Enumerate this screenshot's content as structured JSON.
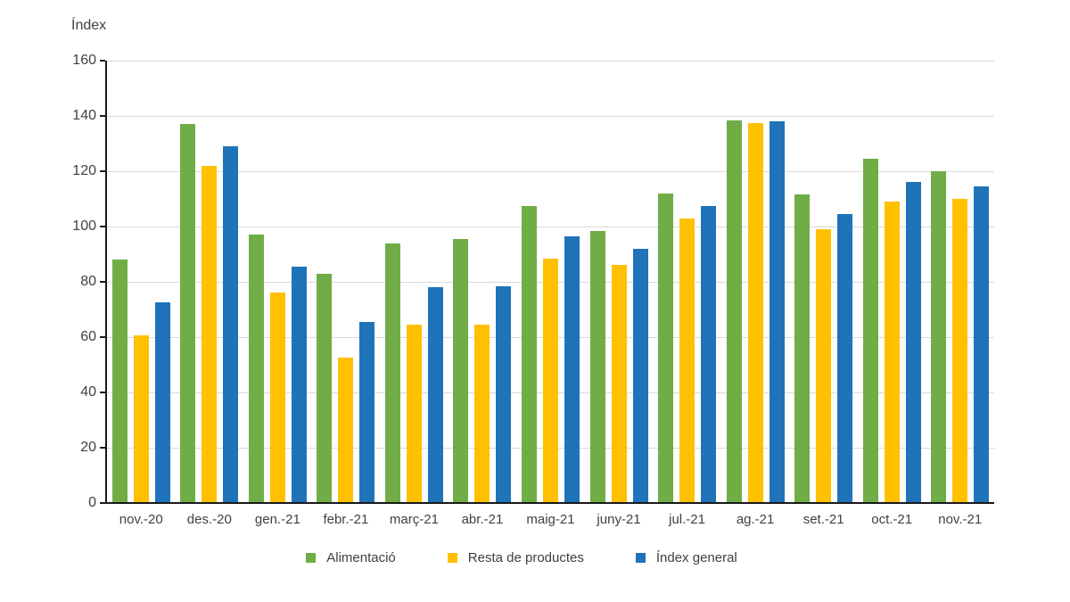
{
  "chart_data": {
    "type": "bar",
    "axis_label": "Índex",
    "categories": [
      "nov.-20",
      "des.-20",
      "gen.-21",
      "febr.-21",
      "març-21",
      "abr.-21",
      "maig-21",
      "juny-21",
      "jul.-21",
      "ag.-21",
      "set.-21",
      "oct.-21",
      "nov.-21"
    ],
    "series": [
      {
        "name": "Alimentació",
        "color": "#70AD47",
        "values": [
          88,
          137,
          97,
          83,
          94,
          95.5,
          107.5,
          98.5,
          112,
          138.5,
          111.5,
          124.5,
          120
        ]
      },
      {
        "name": "Resta de productes",
        "color": "#FFC000",
        "values": [
          60.5,
          122,
          76,
          52.5,
          64.5,
          64.5,
          88.5,
          86,
          103,
          137.5,
          99,
          109,
          110
        ]
      },
      {
        "name": "Índex general",
        "color": "#1F73B8",
        "values": [
          72.5,
          129,
          85.5,
          65.5,
          78,
          78.5,
          96.5,
          92,
          107.5,
          138,
          104.5,
          116,
          114.5
        ]
      }
    ],
    "ylim": [
      0,
      160
    ],
    "yticks": [
      0,
      20,
      40,
      60,
      80,
      100,
      120,
      140,
      160
    ],
    "grid": "horizontal-light-gray",
    "legend_position": "bottom",
    "colors": {
      "gridline": "#d9d9d9",
      "axis": "#1a1a1a",
      "text": "#404040",
      "background": "#ffffff"
    }
  }
}
